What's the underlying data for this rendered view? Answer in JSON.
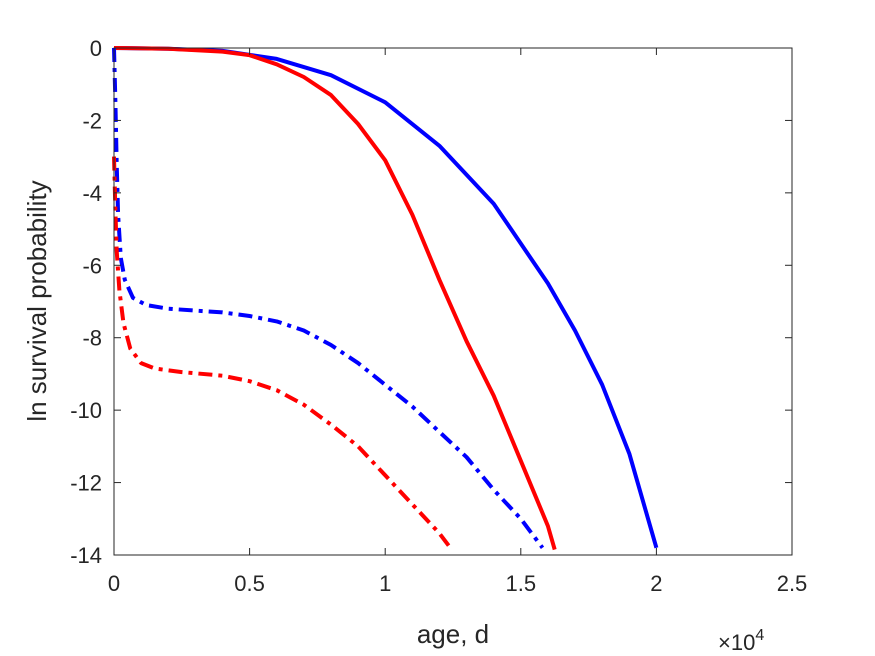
{
  "chart_data": {
    "type": "line",
    "xlabel": "age, d",
    "ylabel": "ln survival probability",
    "x_multiplier": "×10",
    "x_multiplier_exponent": "4",
    "xlim": [
      0,
      25000
    ],
    "ylim": [
      -14,
      0
    ],
    "x_ticks": [
      0,
      5000,
      10000,
      15000,
      20000,
      25000
    ],
    "x_tick_labels": [
      "0",
      "0.5",
      "1",
      "1.5",
      "2",
      "2.5"
    ],
    "y_ticks": [
      0,
      -2,
      -4,
      -6,
      -8,
      -10,
      -12,
      -14
    ],
    "y_tick_labels": [
      "0",
      "-2",
      "-4",
      "-6",
      "-8",
      "-10",
      "-12",
      "-14"
    ],
    "grid": false,
    "series": [
      {
        "color": "#0000ff",
        "style": "solid",
        "points": [
          [
            0,
            0
          ],
          [
            2000,
            -0.02
          ],
          [
            4000,
            -0.08
          ],
          [
            6000,
            -0.3
          ],
          [
            8000,
            -0.75
          ],
          [
            10000,
            -1.5
          ],
          [
            12000,
            -2.7
          ],
          [
            14000,
            -4.3
          ],
          [
            16000,
            -6.5
          ],
          [
            17000,
            -7.8
          ],
          [
            18000,
            -9.3
          ],
          [
            19000,
            -11.2
          ],
          [
            20000,
            -13.8
          ]
        ]
      },
      {
        "color": "#ff0000",
        "style": "solid",
        "points": [
          [
            0,
            0
          ],
          [
            2000,
            -0.02
          ],
          [
            4000,
            -0.1
          ],
          [
            5000,
            -0.2
          ],
          [
            6000,
            -0.45
          ],
          [
            7000,
            -0.8
          ],
          [
            8000,
            -1.3
          ],
          [
            9000,
            -2.1
          ],
          [
            10000,
            -3.1
          ],
          [
            11000,
            -4.6
          ],
          [
            12000,
            -6.4
          ],
          [
            13000,
            -8.1
          ],
          [
            14000,
            -9.6
          ],
          [
            15000,
            -11.4
          ],
          [
            16000,
            -13.2
          ],
          [
            16250,
            -13.85
          ]
        ]
      },
      {
        "color": "#0000ff",
        "style": "dashdot",
        "points": [
          [
            0,
            0
          ],
          [
            50,
            -1.5
          ],
          [
            100,
            -3.2
          ],
          [
            150,
            -4.6
          ],
          [
            250,
            -5.8
          ],
          [
            400,
            -6.4
          ],
          [
            700,
            -6.9
          ],
          [
            1200,
            -7.1
          ],
          [
            2000,
            -7.2
          ],
          [
            3000,
            -7.25
          ],
          [
            4000,
            -7.3
          ],
          [
            5000,
            -7.4
          ],
          [
            6000,
            -7.55
          ],
          [
            7000,
            -7.8
          ],
          [
            8000,
            -8.2
          ],
          [
            9000,
            -8.7
          ],
          [
            10000,
            -9.3
          ],
          [
            11000,
            -9.9
          ],
          [
            12000,
            -10.6
          ],
          [
            13000,
            -11.3
          ],
          [
            14000,
            -12.2
          ],
          [
            15000,
            -13.0
          ],
          [
            15800,
            -13.8
          ]
        ]
      },
      {
        "color": "#ff0000",
        "style": "dashdot",
        "points": [
          [
            0,
            -3.0
          ],
          [
            50,
            -4.5
          ],
          [
            100,
            -5.6
          ],
          [
            200,
            -6.7
          ],
          [
            350,
            -7.6
          ],
          [
            600,
            -8.3
          ],
          [
            1000,
            -8.7
          ],
          [
            1500,
            -8.85
          ],
          [
            2500,
            -8.95
          ],
          [
            4000,
            -9.05
          ],
          [
            5000,
            -9.2
          ],
          [
            6000,
            -9.45
          ],
          [
            7000,
            -9.85
          ],
          [
            8000,
            -10.4
          ],
          [
            9000,
            -11.0
          ],
          [
            10000,
            -11.8
          ],
          [
            11000,
            -12.6
          ],
          [
            12000,
            -13.4
          ],
          [
            12400,
            -13.8
          ]
        ]
      }
    ]
  }
}
